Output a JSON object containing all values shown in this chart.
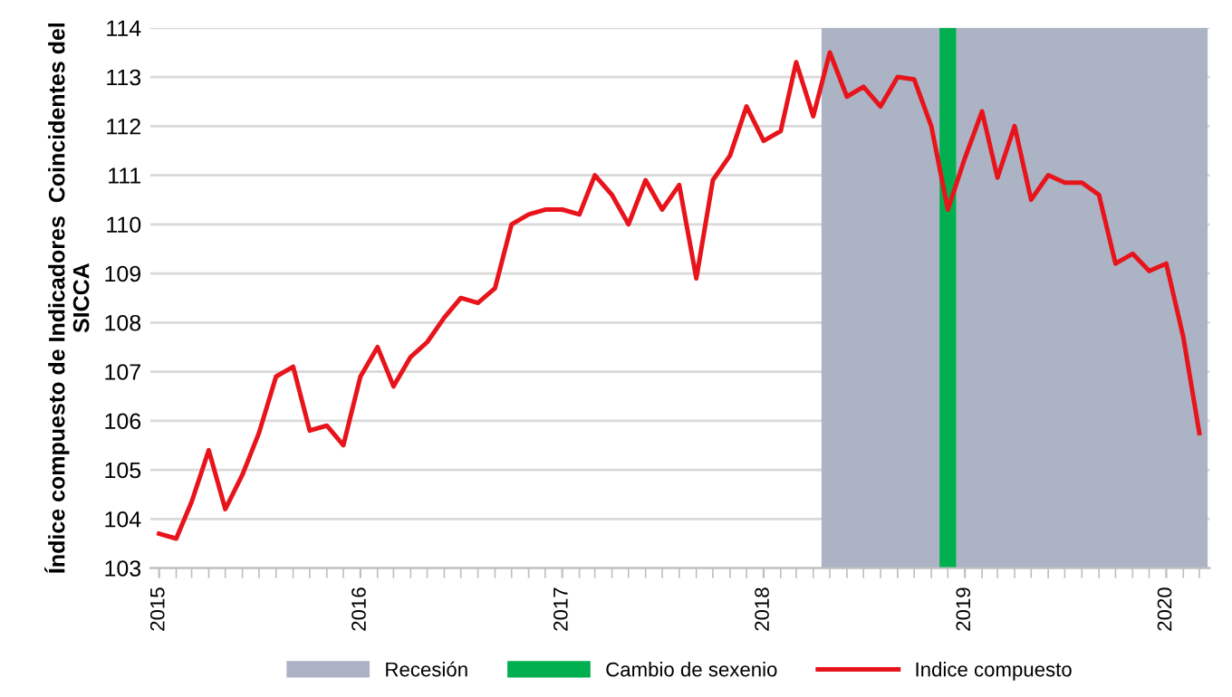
{
  "chart_data": {
    "type": "line",
    "ylabel": "Índice compuesto de Indicadores  Coincidentes del SICCA",
    "x": [
      "2015-01",
      "2015-02",
      "2015-03",
      "2015-04",
      "2015-05",
      "2015-06",
      "2015-07",
      "2015-08",
      "2015-09",
      "2015-10",
      "2015-11",
      "2015-12",
      "2016-01",
      "2016-02",
      "2016-03",
      "2016-04",
      "2016-05",
      "2016-06",
      "2016-07",
      "2016-08",
      "2016-09",
      "2016-10",
      "2016-11",
      "2016-12",
      "2017-01",
      "2017-02",
      "2017-03",
      "2017-04",
      "2017-05",
      "2017-06",
      "2017-07",
      "2017-08",
      "2017-09",
      "2017-10",
      "2017-11",
      "2017-12",
      "2018-01",
      "2018-02",
      "2018-03",
      "2018-04",
      "2018-05",
      "2018-06",
      "2018-07",
      "2018-08",
      "2018-09",
      "2018-10",
      "2018-11",
      "2018-12",
      "2019-01",
      "2019-02",
      "2019-03",
      "2019-04",
      "2019-05",
      "2019-06",
      "2019-07",
      "2019-08",
      "2019-09",
      "2019-10",
      "2019-11",
      "2019-12",
      "2020-01",
      "2020-02",
      "2020-03"
    ],
    "series": [
      {
        "name": "Indice compuesto",
        "color": "#e8141b",
        "values": [
          103.7,
          103.6,
          104.35,
          105.4,
          104.2,
          104.9,
          105.75,
          106.9,
          107.1,
          105.8,
          105.9,
          105.5,
          106.9,
          107.5,
          106.7,
          107.3,
          107.6,
          108.1,
          108.5,
          108.4,
          108.7,
          110.0,
          110.2,
          110.3,
          110.3,
          110.2,
          111.0,
          110.6,
          110.0,
          110.9,
          110.3,
          110.8,
          108.9,
          110.9,
          111.4,
          112.4,
          111.7,
          111.9,
          113.3,
          112.2,
          113.5,
          112.6,
          112.8,
          112.4,
          113.0,
          112.95,
          112.0,
          110.3,
          111.35,
          112.3,
          110.95,
          112.0,
          110.5,
          111.0,
          110.85,
          110.85,
          110.6,
          109.2,
          109.4,
          109.05,
          109.2,
          107.7,
          105.75
        ]
      }
    ],
    "bands": [
      {
        "axis": "x",
        "from": "2018-04-16",
        "to": "2020-03-16",
        "label": "Recesión",
        "color": "#abb3c5"
      },
      {
        "axis": "x",
        "from": "2018-11-16",
        "to": "2018-12-16",
        "label": "Cambio de sexenio",
        "color": "#00b050"
      }
    ],
    "xlim": [
      "2014-12-16",
      "2020-03-20"
    ],
    "xticks": [
      {
        "value": "2015-01-01",
        "label": "2015"
      },
      {
        "value": "2016-01-01",
        "label": "2016"
      },
      {
        "value": "2017-01-01",
        "label": "2017"
      },
      {
        "value": "2018-01-01",
        "label": "2018"
      },
      {
        "value": "2019-01-01",
        "label": "2019"
      },
      {
        "value": "2020-01-01",
        "label": "2020"
      }
    ],
    "ylim": [
      103,
      114
    ],
    "yticks": [
      103,
      104,
      105,
      106,
      107,
      108,
      109,
      110,
      111,
      112,
      113,
      114
    ],
    "grid": "y",
    "legend": "bottom",
    "marker": "none",
    "line_style": "solid"
  }
}
